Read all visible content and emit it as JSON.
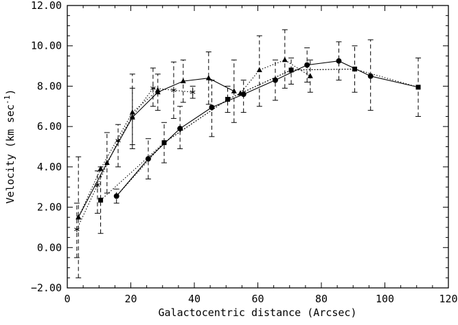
{
  "chart_data": {
    "type": "scatter",
    "xlabel": "Galactocentric distance (Arcsec)",
    "ylabel_main": "Velocity (km sec",
    "ylabel_sup": "-1",
    "ylabel_close": ")",
    "xlim": [
      0,
      120
    ],
    "ylim": [
      -2,
      12
    ],
    "x_ticks": [
      0,
      20,
      40,
      60,
      80,
      100,
      120
    ],
    "x_tick_labels": [
      "0",
      "20",
      "40",
      "60",
      "80",
      "100",
      "120"
    ],
    "y_ticks": [
      -2,
      0,
      2,
      4,
      6,
      8,
      10,
      12
    ],
    "y_tick_labels": [
      "−2.00",
      "0.00",
      "2.00",
      "4.00",
      "6.00",
      "8.00",
      "10.00",
      "12.00"
    ],
    "grid": false,
    "colors": {
      "ink": "#000000",
      "background": "#ffffff"
    },
    "series": [
      {
        "id": "triangles-solid",
        "marker": "triangle",
        "line": "solid",
        "points": [
          {
            "x": 3.5,
            "y": 1.5,
            "lo": -1.5,
            "hi": 4.5
          },
          {
            "x": 12.5,
            "y": 4.2,
            "lo": 2.7,
            "hi": 5.7
          },
          {
            "x": 20.5,
            "y": 6.45,
            "lo": 4.9,
            "hi": 7.9
          },
          {
            "x": 28.5,
            "y": 7.7,
            "lo": 6.8,
            "hi": 8.6
          },
          {
            "x": 36.5,
            "y": 8.25,
            "lo": 7.2,
            "hi": 9.3
          },
          {
            "x": 44.5,
            "y": 8.4,
            "lo": 7.1,
            "hi": 9.7
          },
          {
            "x": 52.5,
            "y": 7.75,
            "lo": 6.2,
            "hi": 9.3
          }
        ]
      },
      {
        "id": "triangles-dotted",
        "marker": "triangle",
        "line": "dotted",
        "points": [
          {
            "x": 3.5,
            "y": 1.5
          },
          {
            "x": 10.5,
            "y": 3.9
          },
          {
            "x": 20.5,
            "y": 6.7
          },
          {
            "x": 28.5,
            "y": 7.8
          }
        ]
      },
      {
        "id": "triangles-dotted-outer",
        "marker": "triangle",
        "line": "dotted",
        "points": [
          {
            "x": 54.5,
            "y": 7.65
          },
          {
            "x": 60.5,
            "y": 8.8,
            "lo": 7.0,
            "hi": 10.5
          },
          {
            "x": 68.5,
            "y": 9.3,
            "lo": 7.9,
            "hi": 10.8
          },
          {
            "x": 76.5,
            "y": 8.5,
            "lo": 7.7,
            "hi": 9.3
          }
        ]
      },
      {
        "id": "stars-dotted",
        "marker": "star",
        "line": "dotted",
        "points": [
          {
            "x": 3.0,
            "y": 0.9,
            "lo": -0.5,
            "hi": 2.2
          },
          {
            "x": 9.5,
            "y": 3.1,
            "lo": 1.7,
            "hi": 3.8
          },
          {
            "x": 16.0,
            "y": 5.3,
            "lo": 4.0,
            "hi": 6.1
          },
          {
            "x": 20.5,
            "y": 6.5,
            "lo": 5.1,
            "hi": 8.6
          },
          {
            "x": 27.0,
            "y": 7.9,
            "lo": 7.0,
            "hi": 8.9
          },
          {
            "x": 33.5,
            "y": 7.8,
            "lo": 6.4,
            "hi": 9.2
          },
          {
            "x": 39.5,
            "y": 7.7,
            "lo": 7.4,
            "hi": 8.0
          }
        ]
      },
      {
        "id": "circles",
        "marker": "circle",
        "line": "solid",
        "points": [
          {
            "x": 15.5,
            "y": 2.55,
            "lo": 2.2,
            "hi": 2.9
          },
          {
            "x": 25.5,
            "y": 4.4,
            "lo": 3.4,
            "hi": 5.4
          },
          {
            "x": 35.5,
            "y": 5.9,
            "lo": 4.9,
            "hi": 7.0
          },
          {
            "x": 45.5,
            "y": 6.95,
            "lo": 5.5,
            "hi": 8.3
          },
          {
            "x": 55.5,
            "y": 7.6,
            "lo": 6.7,
            "hi": 8.3
          },
          {
            "x": 65.5,
            "y": 8.3,
            "lo": 7.3,
            "hi": 9.3
          },
          {
            "x": 75.5,
            "y": 9.05,
            "lo": 8.2,
            "hi": 9.9
          },
          {
            "x": 85.5,
            "y": 9.25,
            "lo": 8.3,
            "hi": 10.2
          },
          {
            "x": 95.5,
            "y": 8.5,
            "lo": 6.8,
            "hi": 10.3
          }
        ]
      },
      {
        "id": "squares",
        "marker": "square",
        "line": "dotted",
        "points": [
          {
            "x": 10.5,
            "y": 2.35,
            "lo": 0.7,
            "hi": 4.0
          },
          {
            "x": 30.5,
            "y": 5.2,
            "lo": 4.2,
            "hi": 6.2
          },
          {
            "x": 50.5,
            "y": 7.35,
            "lo": 6.7,
            "hi": 8.0
          },
          {
            "x": 70.5,
            "y": 8.8,
            "lo": 8.1,
            "hi": 9.4
          },
          {
            "x": 90.5,
            "y": 8.85,
            "lo": 7.7,
            "hi": 10.0
          },
          {
            "x": 110.5,
            "y": 7.95,
            "lo": 6.5,
            "hi": 9.4
          }
        ]
      }
    ],
    "connectors": [
      {
        "id": "circles-to-squares",
        "line": "solid",
        "points": [
          {
            "x": 95.5,
            "y": 8.5
          },
          {
            "x": 110.5,
            "y": 7.95
          }
        ]
      },
      {
        "id": "circles-dotted-shadow",
        "line": "dotted",
        "points": [
          {
            "x": 15.5,
            "y": 2.55
          },
          {
            "x": 30.5,
            "y": 5.2
          },
          {
            "x": 50.5,
            "y": 7.35
          },
          {
            "x": 70.5,
            "y": 8.8
          },
          {
            "x": 90.5,
            "y": 8.85
          }
        ]
      }
    ]
  }
}
